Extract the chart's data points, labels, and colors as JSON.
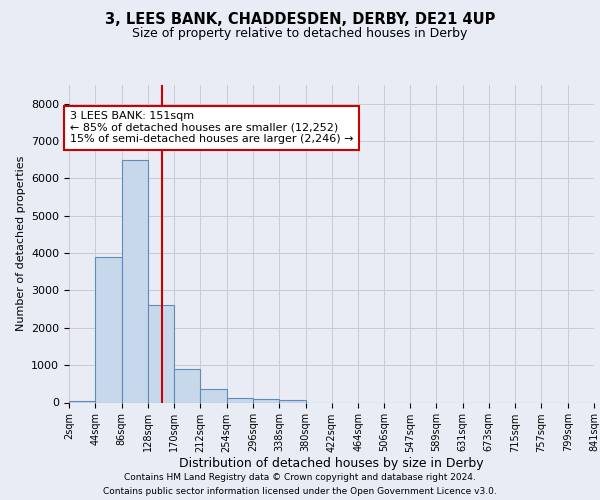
{
  "title_line1": "3, LEES BANK, CHADDESDEN, DERBY, DE21 4UP",
  "title_line2": "Size of property relative to detached houses in Derby",
  "xlabel": "Distribution of detached houses by size in Derby",
  "ylabel": "Number of detached properties",
  "property_size": 151,
  "annotation_line1": "3 LEES BANK: 151sqm",
  "annotation_line2": "← 85% of detached houses are smaller (12,252)",
  "annotation_line3": "15% of semi-detached houses are larger (2,246) →",
  "footer_line1": "Contains HM Land Registry data © Crown copyright and database right 2024.",
  "footer_line2": "Contains public sector information licensed under the Open Government Licence v3.0.",
  "bar_color": "#c8d8eb",
  "bar_edge_color": "#5b8db8",
  "vline_color": "#cc0000",
  "annotation_box_color": "#ffffff",
  "annotation_box_edge": "#cc0000",
  "background_color": "#e8ecf5",
  "plot_bg_color": "#eaecf5",
  "bin_edges": [
    2,
    44,
    86,
    128,
    170,
    212,
    254,
    296,
    338,
    380,
    422,
    464,
    506,
    547,
    589,
    631,
    673,
    715,
    757,
    799,
    841
  ],
  "bin_labels": [
    "2sqm",
    "44sqm",
    "86sqm",
    "128sqm",
    "170sqm",
    "212sqm",
    "254sqm",
    "296sqm",
    "338sqm",
    "380sqm",
    "422sqm",
    "464sqm",
    "506sqm",
    "547sqm",
    "589sqm",
    "631sqm",
    "673sqm",
    "715sqm",
    "757sqm",
    "799sqm",
    "841sqm"
  ],
  "bar_heights": [
    50,
    3900,
    6500,
    2600,
    900,
    350,
    130,
    100,
    60,
    0,
    0,
    0,
    0,
    0,
    0,
    0,
    0,
    0,
    0,
    0
  ],
  "ylim": [
    0,
    8500
  ],
  "ytick_values": [
    0,
    1000,
    2000,
    3000,
    4000,
    5000,
    6000,
    7000,
    8000
  ],
  "grid_color": "#c8ccd8"
}
